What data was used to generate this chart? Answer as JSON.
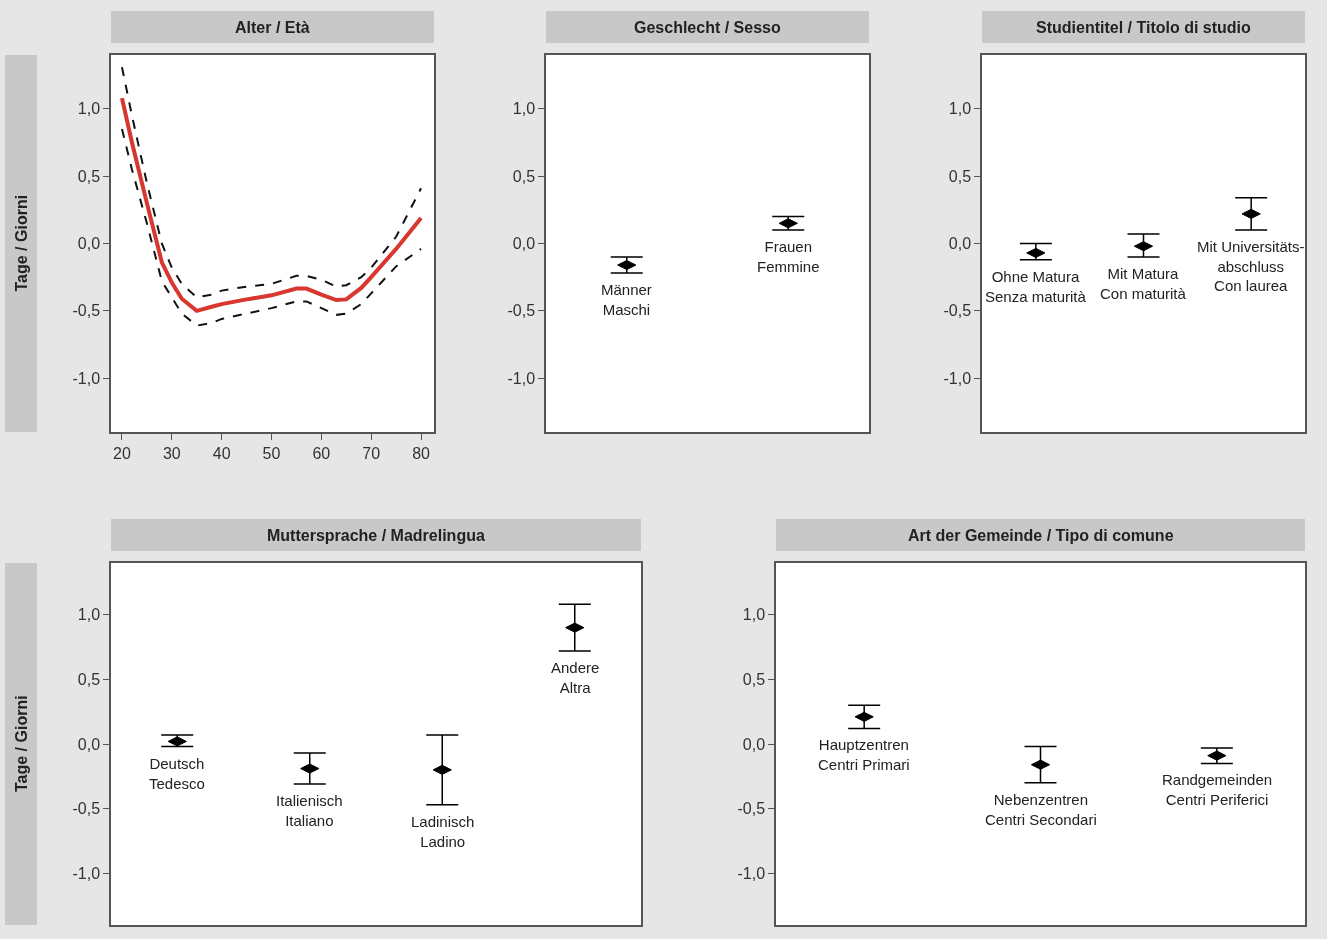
{
  "chart_data": [
    {
      "type": "line",
      "title": "Alter / Età",
      "ylabel": "Tage / Giorni",
      "xlim": [
        17.8,
        82.6
      ],
      "xticks": [
        20,
        30,
        40,
        50,
        60,
        70,
        80
      ],
      "ylim": [
        -1.4,
        1.4
      ],
      "yticks": [
        {
          "value": -1,
          "label": "-1,0"
        },
        {
          "value": -0.5,
          "label": "-0,5"
        },
        {
          "value": 0,
          "label": "0,0"
        },
        {
          "value": 0.5,
          "label": "0,5"
        },
        {
          "value": 1,
          "label": "1,0"
        }
      ],
      "grid": false,
      "x": [
        20,
        22,
        25,
        28,
        30,
        32,
        35,
        38,
        40,
        45,
        50,
        55,
        57,
        60,
        63,
        65,
        68,
        70,
        75,
        80
      ],
      "series": [
        {
          "color": "#d7372f",
          "line_style": "solid",
          "values": [
            1.08,
            0.75,
            0.3,
            -0.14,
            -0.29,
            -0.41,
            -0.5,
            -0.47,
            -0.45,
            -0.415,
            -0.385,
            -0.335,
            -0.335,
            -0.38,
            -0.42,
            -0.415,
            -0.33,
            -0.25,
            -0.04,
            0.19
          ]
        },
        {
          "color": "#111111",
          "line_style": "dashed",
          "values": [
            0.85,
            0.55,
            0.15,
            -0.28,
            -0.4,
            -0.52,
            -0.61,
            -0.59,
            -0.56,
            -0.52,
            -0.48,
            -0.43,
            -0.43,
            -0.48,
            -0.53,
            -0.52,
            -0.45,
            -0.37,
            -0.17,
            -0.04
          ]
        },
        {
          "color": "#111111",
          "line_style": "dashed",
          "values": [
            1.31,
            0.95,
            0.45,
            0.0,
            -0.18,
            -0.3,
            -0.4,
            -0.38,
            -0.35,
            -0.32,
            -0.3,
            -0.24,
            -0.24,
            -0.27,
            -0.32,
            -0.31,
            -0.25,
            -0.18,
            0.05,
            0.41
          ]
        }
      ]
    },
    {
      "type": "scatter",
      "title": "Geschlecht / Sesso",
      "categories": [
        "Männer\nMaschi",
        "Frauen\nFemmine"
      ],
      "tick_labels": "y",
      "ylim": [
        -1.4,
        1.4
      ],
      "yticks": [
        {
          "value": -1,
          "label": "-1,0"
        },
        {
          "value": -0.5,
          "label": "-0,5"
        },
        {
          "value": 0,
          "label": "0,0"
        },
        {
          "value": 0.5,
          "label": "0,5"
        },
        {
          "value": 1,
          "label": "1,0"
        }
      ],
      "grid": false,
      "marker": "diamond",
      "series": [
        {
          "color": "#000000",
          "values": [
            -0.16,
            0.15
          ],
          "errors": [
            [
              -0.22,
              -0.1
            ],
            [
              0.1,
              0.2
            ]
          ]
        }
      ]
    },
    {
      "type": "scatter",
      "title": "Studientitel / Titolo di studio",
      "categories": [
        "Ohne Matura\nSenza maturità",
        "Mit Matura\nCon maturità",
        "Mit Universitäts-\nabschluss\nCon laurea"
      ],
      "tick_labels": "y",
      "ylim": [
        -1.4,
        1.4
      ],
      "yticks": [
        {
          "value": -1,
          "label": "-1,0"
        },
        {
          "value": -0.5,
          "label": "-0,5"
        },
        {
          "value": 0,
          "label": "0,0"
        },
        {
          "value": 0.5,
          "label": "0,5"
        },
        {
          "value": 1,
          "label": "1,0"
        }
      ],
      "grid": false,
      "marker": "diamond",
      "series": [
        {
          "color": "#000000",
          "values": [
            -0.07,
            -0.02,
            0.22
          ],
          "errors": [
            [
              -0.12,
              0.0
            ],
            [
              -0.1,
              0.07
            ],
            [
              0.1,
              0.34
            ]
          ]
        }
      ]
    },
    {
      "type": "scatter",
      "title": "Muttersprache / Madrelingua",
      "ylabel": "Tage / Giorni",
      "categories": [
        "Deutsch\nTedesco",
        "Italienisch\nItaliano",
        "Ladinisch\nLadino",
        "Andere\nAltra"
      ],
      "tick_labels": "y",
      "ylim": [
        -1.4,
        1.4
      ],
      "yticks": [
        {
          "value": -1,
          "label": "-1,0"
        },
        {
          "value": -0.5,
          "label": "-0,5"
        },
        {
          "value": 0,
          "label": "0,0"
        },
        {
          "value": 0.5,
          "label": "0,5"
        },
        {
          "value": 1,
          "label": "1,0"
        }
      ],
      "grid": false,
      "marker": "diamond",
      "series": [
        {
          "color": "#000000",
          "values": [
            0.02,
            -0.19,
            -0.2,
            0.9
          ],
          "errors": [
            [
              -0.02,
              0.07
            ],
            [
              -0.31,
              -0.07
            ],
            [
              -0.47,
              0.07
            ],
            [
              0.72,
              1.08
            ]
          ]
        }
      ]
    },
    {
      "type": "scatter",
      "title": "Art der Gemeinde / Tipo di comune",
      "categories": [
        "Hauptzentren\nCentri Primari",
        "Nebenzentren\nCentri Secondari",
        "Randgemeinden\nCentri Periferici"
      ],
      "tick_labels": "y",
      "ylim": [
        -1.4,
        1.4
      ],
      "yticks": [
        {
          "value": -1,
          "label": "-1,0"
        },
        {
          "value": -0.5,
          "label": "-0,5"
        },
        {
          "value": 0,
          "label": "0,0"
        },
        {
          "value": 0.5,
          "label": "0,5"
        },
        {
          "value": 1,
          "label": "1,0"
        }
      ],
      "grid": false,
      "marker": "diamond",
      "series": [
        {
          "color": "#000000",
          "values": [
            0.21,
            -0.16,
            -0.09
          ],
          "errors": [
            [
              0.12,
              0.3
            ],
            [
              -0.3,
              -0.02
            ],
            [
              -0.15,
              -0.03
            ]
          ]
        }
      ]
    }
  ]
}
